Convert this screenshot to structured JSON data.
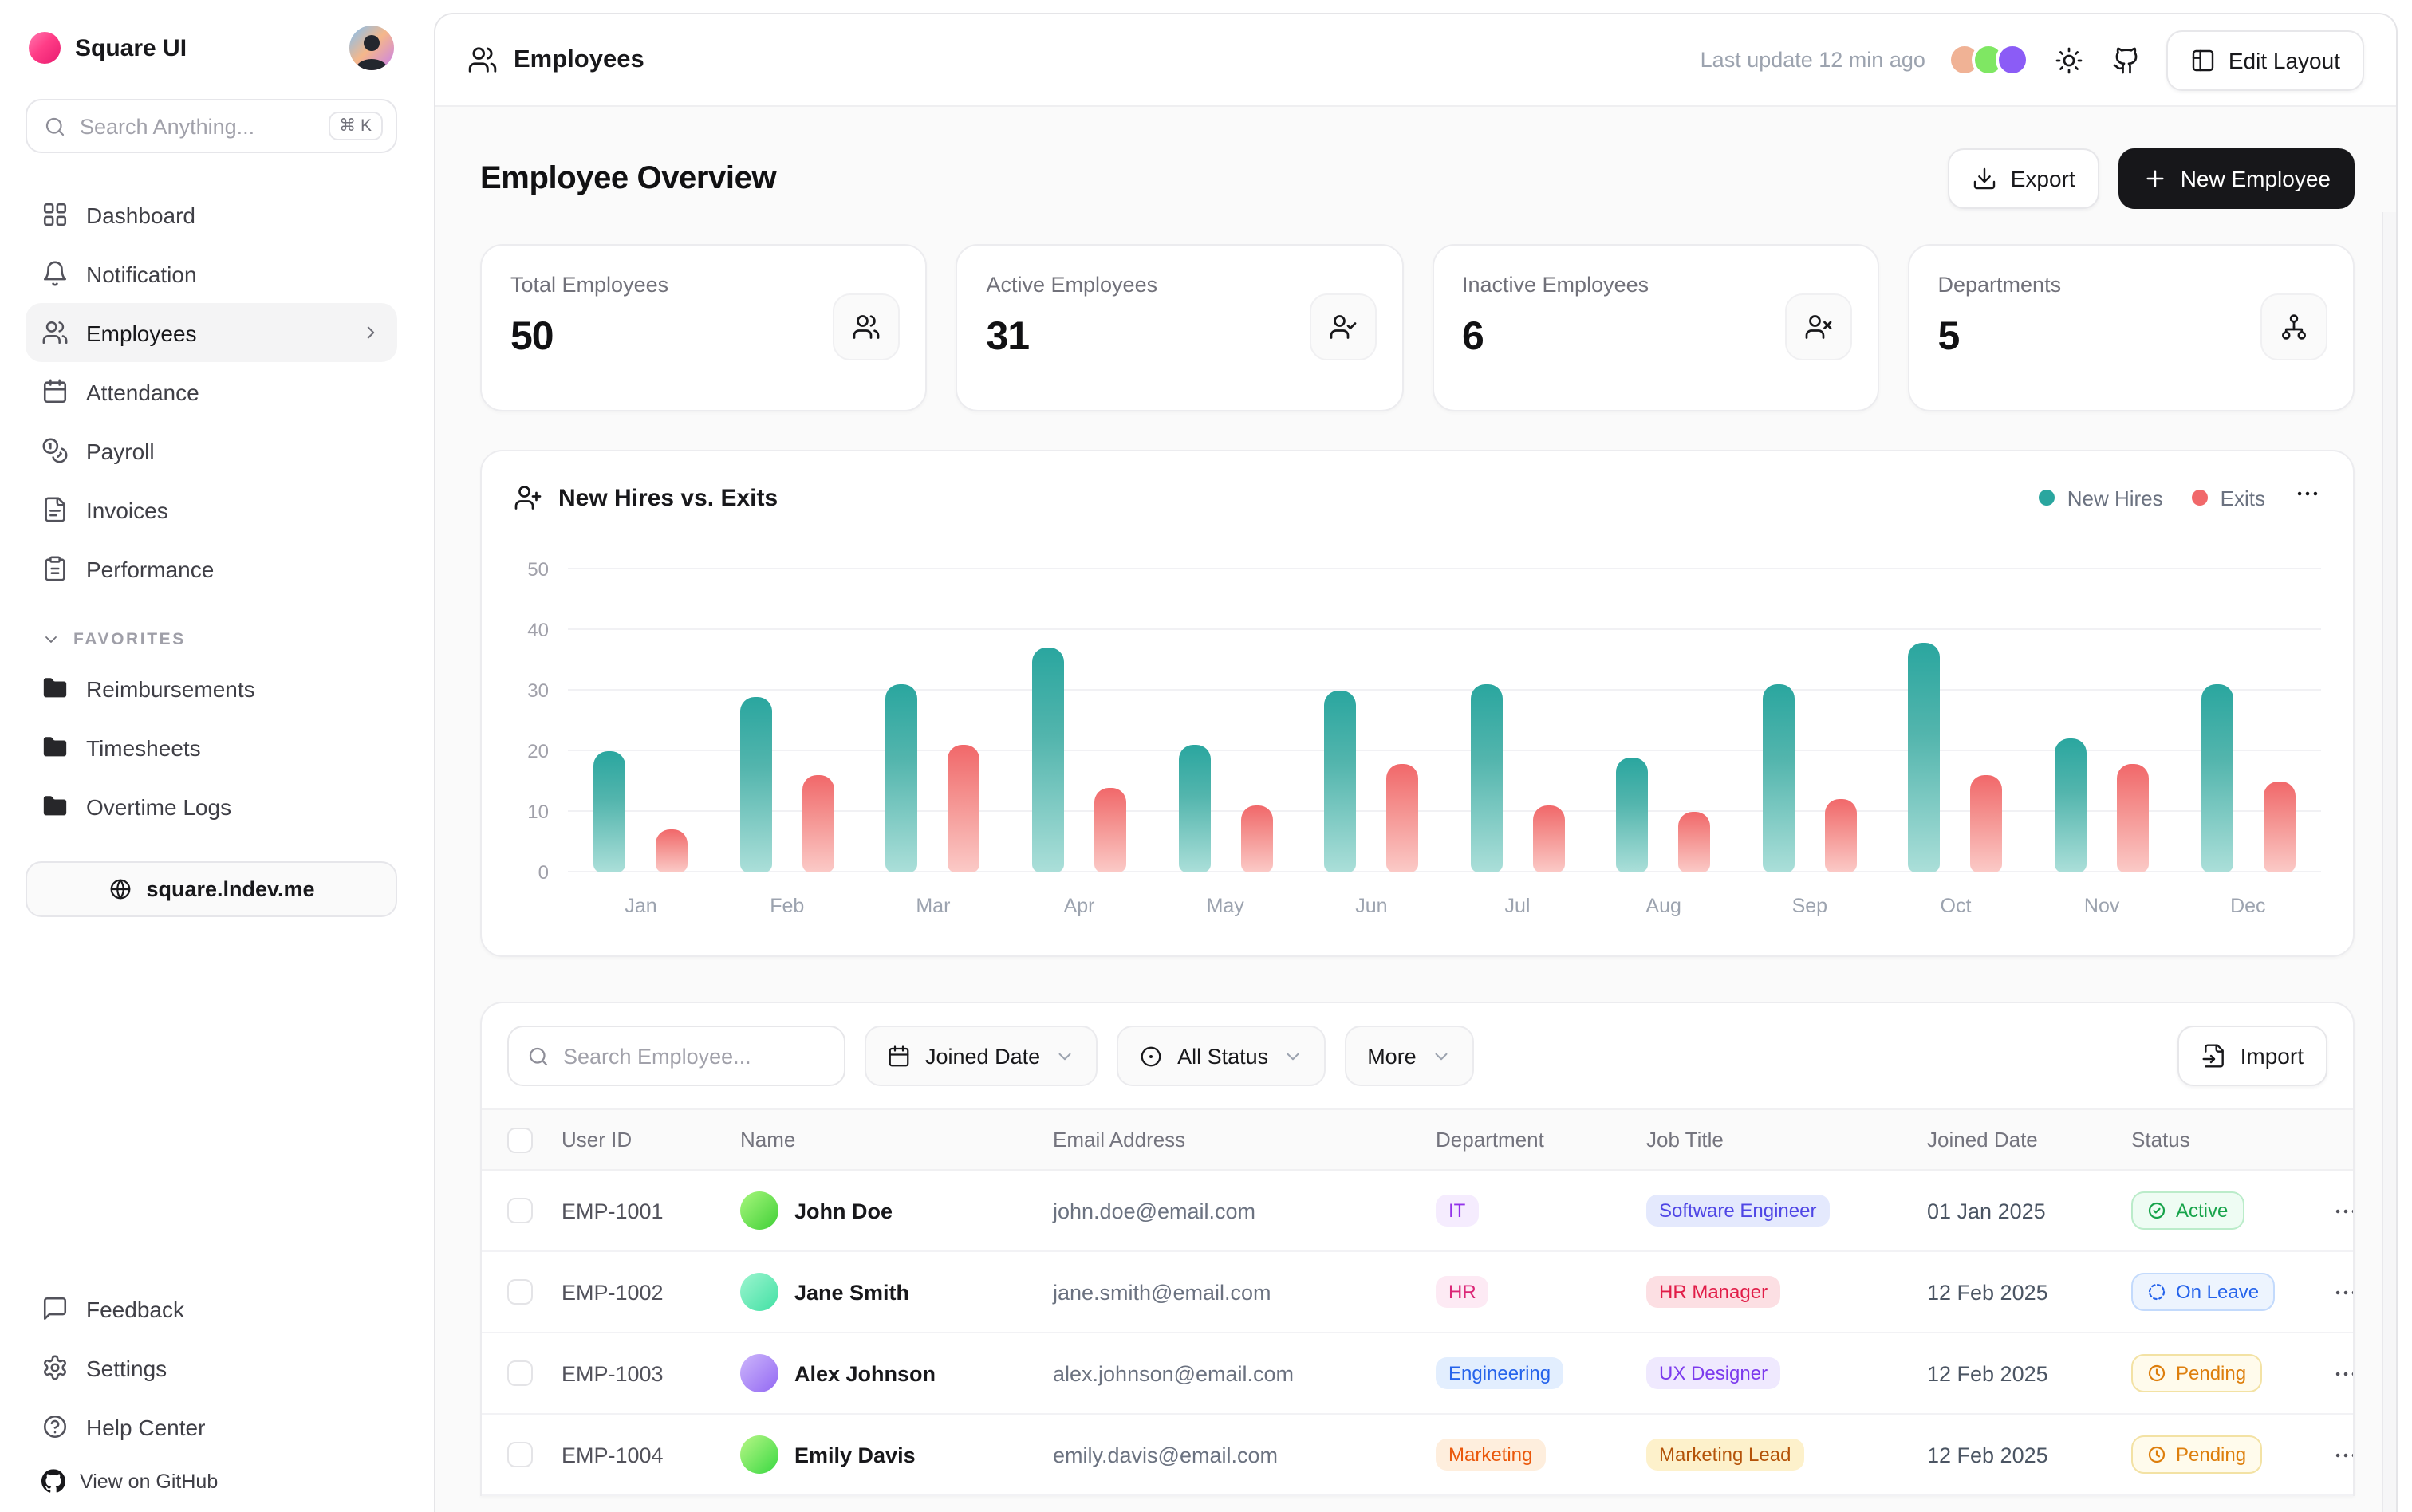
{
  "sidebar": {
    "brand": "Square UI",
    "search_placeholder": "Search Anything...",
    "search_shortcut": "⌘ K",
    "nav": [
      {
        "label": "Dashboard",
        "icon": "grid",
        "active": false
      },
      {
        "label": "Notification",
        "icon": "bell",
        "active": false
      },
      {
        "label": "Employees",
        "icon": "users",
        "active": true
      },
      {
        "label": "Attendance",
        "icon": "calendar",
        "active": false
      },
      {
        "label": "Payroll",
        "icon": "coins",
        "active": false
      },
      {
        "label": "Invoices",
        "icon": "file-text",
        "active": false
      },
      {
        "label": "Performance",
        "icon": "clipboard",
        "active": false
      }
    ],
    "favorites_label": "FAVORITES",
    "favorites": [
      {
        "label": "Reimbursements",
        "icon": "folder"
      },
      {
        "label": "Timesheets",
        "icon": "folder"
      },
      {
        "label": "Overtime Logs",
        "icon": "folder"
      }
    ],
    "site_link": "square.lndev.me",
    "footer_nav": [
      {
        "label": "Feedback",
        "icon": "message"
      },
      {
        "label": "Settings",
        "icon": "gear"
      },
      {
        "label": "Help Center",
        "icon": "help"
      }
    ],
    "github_label": "View on GitHub"
  },
  "header": {
    "title": "Employees",
    "last_update": "Last update 12 min ago",
    "edit_layout_label": "Edit Layout",
    "presence_colors": [
      "#f0b295",
      "#7fe763",
      "#8b5cf6"
    ]
  },
  "overview": {
    "title": "Employee Overview",
    "export_label": "Export",
    "new_employee_label": "New Employee",
    "stats": [
      {
        "label": "Total Employees",
        "value": "50",
        "icon": "users"
      },
      {
        "label": "Active Employees",
        "value": "31",
        "icon": "user-check"
      },
      {
        "label": "Inactive Employees",
        "value": "6",
        "icon": "user-x"
      },
      {
        "label": "Departments",
        "value": "5",
        "icon": "org"
      }
    ]
  },
  "chart_card": {
    "title": "New Hires vs. Exits",
    "icon": "user-plus"
  },
  "chart_data": {
    "type": "bar",
    "title": "New Hires vs. Exits",
    "categories": [
      "Jan",
      "Feb",
      "Mar",
      "Apr",
      "May",
      "Jun",
      "Jul",
      "Aug",
      "Sep",
      "Oct",
      "Nov",
      "Dec"
    ],
    "series": [
      {
        "name": "New Hires",
        "color": "#2aa69f",
        "color_mid": "#53b5ad",
        "color_bottom": "#abdfd9",
        "values": [
          20,
          29,
          31,
          37,
          21,
          30,
          31,
          19,
          31,
          38,
          22,
          31
        ]
      },
      {
        "name": "Exits",
        "color": "#f1686a",
        "color_mid": "#f4908e",
        "color_bottom": "#fbcac7",
        "values": [
          7,
          16,
          21,
          14,
          11,
          18,
          11,
          10,
          12,
          16,
          18,
          15
        ]
      }
    ],
    "ylim": [
      0,
      50
    ],
    "yticks": [
      0,
      10,
      20,
      30,
      40,
      50
    ],
    "grid": true,
    "legend_position": "top-right"
  },
  "table": {
    "search_placeholder": "Search Employee...",
    "filters": [
      {
        "label": "Joined Date",
        "icon": "calendar"
      },
      {
        "label": "All Status",
        "icon": "circle-dot"
      },
      {
        "label": "More",
        "icon": ""
      }
    ],
    "import_label": "Import",
    "columns": [
      "User ID",
      "Name",
      "Email Address",
      "Department",
      "Job Title",
      "Joined Date",
      "Status"
    ],
    "status_styles": {
      "active": {
        "bg": "#eefcf3",
        "fg": "#16a34a",
        "border": "#bbecca",
        "icon": "check-circle"
      },
      "onleave": {
        "bg": "#edf4fe",
        "fg": "#2563eb",
        "border": "#c3dafc",
        "icon": "circle-dashed"
      },
      "pending": {
        "bg": "#fffbec",
        "fg": "#dd7e0c",
        "border": "#f3e2a4",
        "icon": "clock"
      }
    },
    "rows": [
      {
        "id": "EMP-1001",
        "name": "John Doe",
        "email": "john.doe@email.com",
        "avatar": [
          "#a8f77d",
          "#3fcf36"
        ],
        "department": {
          "label": "IT",
          "bg": "#f5ecfe",
          "fg": "#9333ea"
        },
        "job": {
          "label": "Software Engineer",
          "bg": "#e4e9fd",
          "fg": "#4f46e5"
        },
        "joined": "01 Jan 2025",
        "status": {
          "label": "Active",
          "type": "active"
        }
      },
      {
        "id": "EMP-1002",
        "name": "Jane Smith",
        "email": "jane.smith@email.com",
        "avatar": [
          "#9df5cf",
          "#41e0a4"
        ],
        "department": {
          "label": "HR",
          "bg": "#fdeaf4",
          "fg": "#db2777"
        },
        "job": {
          "label": "HR Manager",
          "bg": "#fcdfe3",
          "fg": "#e11d48"
        },
        "joined": "12 Feb 2025",
        "status": {
          "label": "On Leave",
          "type": "onleave"
        }
      },
      {
        "id": "EMP-1003",
        "name": "Alex Johnson",
        "email": "alex.johnson@email.com",
        "avatar": [
          "#cdb6fb",
          "#9268f3"
        ],
        "department": {
          "label": "Engineering",
          "bg": "#e2eefe",
          "fg": "#2563eb"
        },
        "job": {
          "label": "UX Designer",
          "bg": "#efe9fe",
          "fg": "#7c3aed"
        },
        "joined": "12 Feb 2025",
        "status": {
          "label": "Pending",
          "type": "pending"
        }
      },
      {
        "id": "EMP-1004",
        "name": "Emily Davis",
        "email": "emily.davis@email.com",
        "avatar": [
          "#b8f787",
          "#38d841"
        ],
        "department": {
          "label": "Marketing",
          "bg": "#feeedd",
          "fg": "#ea580c"
        },
        "job": {
          "label": "Marketing Lead",
          "bg": "#fdf1cb",
          "fg": "#b45309"
        },
        "joined": "12 Feb 2025",
        "status": {
          "label": "Pending",
          "type": "pending"
        }
      }
    ]
  }
}
